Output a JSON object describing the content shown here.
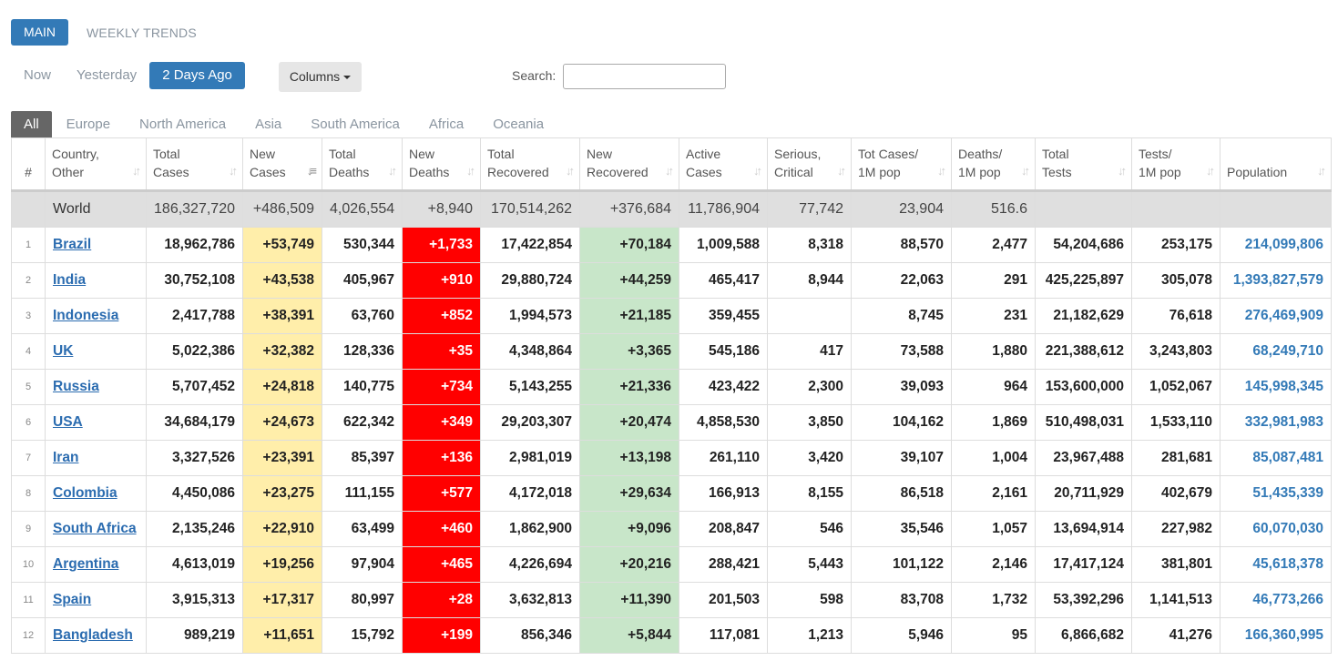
{
  "top_tabs": {
    "main": "MAIN",
    "weekly": "WEEKLY TRENDS"
  },
  "days": {
    "now": "Now",
    "yesterday": "Yesterday",
    "two_days": "2 Days Ago"
  },
  "columns_label": "Columns",
  "search": {
    "label": "Search:",
    "value": ""
  },
  "regions": [
    "All",
    "Europe",
    "North America",
    "Asia",
    "South America",
    "Africa",
    "Oceania"
  ],
  "colors": {
    "accent": "#337ab7",
    "new_cases_bg": "#ffeeaa",
    "new_deaths_bg": "#ff0000",
    "new_recovered_bg": "#c8e6c9"
  },
  "headers": [
    [
      "#",
      ""
    ],
    [
      "Country,",
      "Other"
    ],
    [
      "Total",
      "Cases"
    ],
    [
      "New",
      "Cases"
    ],
    [
      "Total",
      "Deaths"
    ],
    [
      "New",
      "Deaths"
    ],
    [
      "Total",
      "Recovered"
    ],
    [
      "New",
      "Recovered"
    ],
    [
      "Active",
      "Cases"
    ],
    [
      "Serious,",
      "Critical"
    ],
    [
      "Tot Cases/",
      "1M pop"
    ],
    [
      "Deaths/",
      "1M pop"
    ],
    [
      "Total",
      "Tests"
    ],
    [
      "Tests/",
      "1M pop"
    ],
    [
      "",
      "Population"
    ]
  ],
  "world": [
    "",
    "World",
    "186,327,720",
    "+486,509",
    "4,026,554",
    "+8,940",
    "170,514,262",
    "+376,684",
    "11,786,904",
    "77,742",
    "23,904",
    "516.6",
    "",
    "",
    ""
  ],
  "rows": [
    [
      "1",
      "Brazil",
      "18,962,786",
      "+53,749",
      "530,344",
      "+1,733",
      "17,422,854",
      "+70,184",
      "1,009,588",
      "8,318",
      "88,570",
      "2,477",
      "54,204,686",
      "253,175",
      "214,099,806"
    ],
    [
      "2",
      "India",
      "30,752,108",
      "+43,538",
      "405,967",
      "+910",
      "29,880,724",
      "+44,259",
      "465,417",
      "8,944",
      "22,063",
      "291",
      "425,225,897",
      "305,078",
      "1,393,827,579"
    ],
    [
      "3",
      "Indonesia",
      "2,417,788",
      "+38,391",
      "63,760",
      "+852",
      "1,994,573",
      "+21,185",
      "359,455",
      "",
      "8,745",
      "231",
      "21,182,629",
      "76,618",
      "276,469,909"
    ],
    [
      "4",
      "UK",
      "5,022,386",
      "+32,382",
      "128,336",
      "+35",
      "4,348,864",
      "+3,365",
      "545,186",
      "417",
      "73,588",
      "1,880",
      "221,388,612",
      "3,243,803",
      "68,249,710"
    ],
    [
      "5",
      "Russia",
      "5,707,452",
      "+24,818",
      "140,775",
      "+734",
      "5,143,255",
      "+21,336",
      "423,422",
      "2,300",
      "39,093",
      "964",
      "153,600,000",
      "1,052,067",
      "145,998,345"
    ],
    [
      "6",
      "USA",
      "34,684,179",
      "+24,673",
      "622,342",
      "+349",
      "29,203,307",
      "+20,474",
      "4,858,530",
      "3,850",
      "104,162",
      "1,869",
      "510,498,031",
      "1,533,110",
      "332,981,983"
    ],
    [
      "7",
      "Iran",
      "3,327,526",
      "+23,391",
      "85,397",
      "+136",
      "2,981,019",
      "+13,198",
      "261,110",
      "3,420",
      "39,107",
      "1,004",
      "23,967,488",
      "281,681",
      "85,087,481"
    ],
    [
      "8",
      "Colombia",
      "4,450,086",
      "+23,275",
      "111,155",
      "+577",
      "4,172,018",
      "+29,634",
      "166,913",
      "8,155",
      "86,518",
      "2,161",
      "20,711,929",
      "402,679",
      "51,435,339"
    ],
    [
      "9",
      "South Africa",
      "2,135,246",
      "+22,910",
      "63,499",
      "+460",
      "1,862,900",
      "+9,096",
      "208,847",
      "546",
      "35,546",
      "1,057",
      "13,694,914",
      "227,982",
      "60,070,030"
    ],
    [
      "10",
      "Argentina",
      "4,613,019",
      "+19,256",
      "97,904",
      "+465",
      "4,226,694",
      "+20,216",
      "288,421",
      "5,443",
      "101,122",
      "2,146",
      "17,417,124",
      "381,801",
      "45,618,378"
    ],
    [
      "11",
      "Spain",
      "3,915,313",
      "+17,317",
      "80,997",
      "+28",
      "3,632,813",
      "+11,390",
      "201,503",
      "598",
      "83,708",
      "1,732",
      "53,392,296",
      "1,141,513",
      "46,773,266"
    ],
    [
      "12",
      "Bangladesh",
      "989,219",
      "+11,651",
      "15,792",
      "+199",
      "856,346",
      "+5,844",
      "117,081",
      "1,213",
      "5,946",
      "95",
      "6,866,682",
      "41,276",
      "166,360,995"
    ]
  ]
}
